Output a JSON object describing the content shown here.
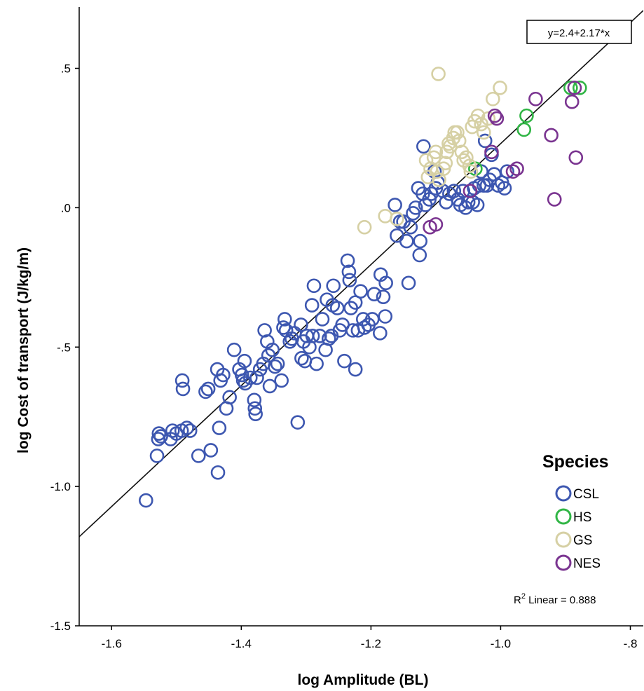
{
  "chart_data": {
    "type": "scatter",
    "xlabel": "log Amplitude (BL)",
    "ylabel": "log Cost of transport (J/kg/m)",
    "xlim": [
      -1.65,
      -0.78
    ],
    "ylim": [
      -1.5,
      0.72
    ],
    "x_ticks": [
      -1.6,
      -1.4,
      -1.2,
      -1.0,
      -0.8
    ],
    "x_tick_labels": [
      "-1.6",
      "-1.4",
      "-1.2",
      "-1.0",
      "-.8"
    ],
    "y_ticks": [
      -1.5,
      -1.0,
      -0.5,
      0.0,
      0.5
    ],
    "y_tick_labels": [
      "-1.5",
      "-1.0",
      "-.5",
      ".0",
      ".5"
    ],
    "grid": false,
    "legend": {
      "title": "Species",
      "placement": "bottom-right",
      "entries": [
        {
          "label": "CSL",
          "color": "#3d57b0"
        },
        {
          "label": "HS",
          "color": "#30b545"
        },
        {
          "label": "GS",
          "color": "#d6d0a4"
        },
        {
          "label": "NES",
          "color": "#7a3490"
        }
      ]
    },
    "fit_line": {
      "intercept": 2.4,
      "slope": 2.17,
      "label": "y=2.4+2.17*x"
    },
    "r2_label": {
      "prefix": "R",
      "sup": "2",
      "suffix": " Linear = 0.888"
    },
    "series": [
      {
        "name": "CSL",
        "color": "#3d57b0",
        "points": [
          [
            -1.547,
            -1.05
          ],
          [
            -1.53,
            -0.89
          ],
          [
            -1.528,
            -0.83
          ],
          [
            -1.527,
            -0.81
          ],
          [
            -1.524,
            -0.82
          ],
          [
            -1.509,
            -0.83
          ],
          [
            -1.506,
            -0.8
          ],
          [
            -1.5,
            -0.81
          ],
          [
            -1.492,
            -0.8
          ],
          [
            -1.491,
            -0.62
          ],
          [
            -1.49,
            -0.65
          ],
          [
            -1.484,
            -0.79
          ],
          [
            -1.479,
            -0.8
          ],
          [
            -1.466,
            -0.89
          ],
          [
            -1.455,
            -0.66
          ],
          [
            -1.451,
            -0.65
          ],
          [
            -1.447,
            -0.87
          ],
          [
            -1.437,
            -0.58
          ],
          [
            -1.436,
            -0.95
          ],
          [
            -1.434,
            -0.79
          ],
          [
            -1.432,
            -0.62
          ],
          [
            -1.428,
            -0.6
          ],
          [
            -1.423,
            -0.72
          ],
          [
            -1.418,
            -0.68
          ],
          [
            -1.411,
            -0.51
          ],
          [
            -1.403,
            -0.58
          ],
          [
            -1.399,
            -0.6
          ],
          [
            -1.397,
            -0.62
          ],
          [
            -1.395,
            -0.55
          ],
          [
            -1.394,
            -0.63
          ],
          [
            -1.386,
            -0.61
          ],
          [
            -1.38,
            -0.69
          ],
          [
            -1.379,
            -0.72
          ],
          [
            -1.378,
            -0.74
          ],
          [
            -1.376,
            -0.61
          ],
          [
            -1.371,
            -0.58
          ],
          [
            -1.366,
            -0.56
          ],
          [
            -1.364,
            -0.44
          ],
          [
            -1.36,
            -0.48
          ],
          [
            -1.358,
            -0.53
          ],
          [
            -1.356,
            -0.64
          ],
          [
            -1.352,
            -0.51
          ],
          [
            -1.348,
            -0.57
          ],
          [
            -1.344,
            -0.56
          ],
          [
            -1.338,
            -0.62
          ],
          [
            -1.335,
            -0.43
          ],
          [
            -1.333,
            -0.4
          ],
          [
            -1.331,
            -0.44
          ],
          [
            -1.325,
            -0.48
          ],
          [
            -1.322,
            -0.47
          ],
          [
            -1.318,
            -0.45
          ],
          [
            -1.313,
            -0.77
          ],
          [
            -1.308,
            -0.42
          ],
          [
            -1.307,
            -0.54
          ],
          [
            -1.304,
            -0.48
          ],
          [
            -1.302,
            -0.55
          ],
          [
            -1.299,
            -0.46
          ],
          [
            -1.295,
            -0.5
          ],
          [
            -1.291,
            -0.35
          ],
          [
            -1.29,
            -0.46
          ],
          [
            -1.288,
            -0.28
          ],
          [
            -1.284,
            -0.56
          ],
          [
            -1.279,
            -0.46
          ],
          [
            -1.275,
            -0.4
          ],
          [
            -1.27,
            -0.51
          ],
          [
            -1.268,
            -0.33
          ],
          [
            -1.265,
            -0.47
          ],
          [
            -1.261,
            -0.46
          ],
          [
            -1.259,
            -0.35
          ],
          [
            -1.258,
            -0.28
          ],
          [
            -1.252,
            -0.36
          ],
          [
            -1.248,
            -0.44
          ],
          [
            -1.244,
            -0.42
          ],
          [
            -1.241,
            -0.55
          ],
          [
            -1.236,
            -0.19
          ],
          [
            -1.234,
            -0.23
          ],
          [
            -1.233,
            -0.26
          ],
          [
            -1.231,
            -0.36
          ],
          [
            -1.228,
            -0.44
          ],
          [
            -1.224,
            -0.58
          ],
          [
            -1.224,
            -0.34
          ],
          [
            -1.22,
            -0.44
          ],
          [
            -1.216,
            -0.3
          ],
          [
            -1.212,
            -0.4
          ],
          [
            -1.21,
            -0.43
          ],
          [
            -1.204,
            -0.42
          ],
          [
            -1.198,
            -0.4
          ],
          [
            -1.195,
            -0.31
          ],
          [
            -1.186,
            -0.45
          ],
          [
            -1.185,
            -0.24
          ],
          [
            -1.181,
            -0.32
          ],
          [
            -1.178,
            -0.39
          ],
          [
            -1.177,
            -0.27
          ],
          [
            -1.163,
            0.01
          ],
          [
            -1.16,
            -0.1
          ],
          [
            -1.155,
            -0.05
          ],
          [
            -1.15,
            -0.05
          ],
          [
            -1.145,
            -0.12
          ],
          [
            -1.142,
            -0.27
          ],
          [
            -1.139,
            -0.07
          ],
          [
            -1.135,
            -0.02
          ],
          [
            -1.131,
            0.0
          ],
          [
            -1.127,
            0.07
          ],
          [
            -1.125,
            -0.17
          ],
          [
            -1.124,
            -0.12
          ],
          [
            -1.12,
            0.05
          ],
          [
            -1.119,
            0.22
          ],
          [
            -1.116,
            0.01
          ],
          [
            -1.11,
            0.03
          ],
          [
            -1.107,
            0.05
          ],
          [
            -1.102,
            0.13
          ],
          [
            -1.1,
            0.07
          ],
          [
            -1.097,
            0.09
          ],
          [
            -1.089,
            0.06
          ],
          [
            -1.084,
            0.02
          ],
          [
            -1.079,
            0.05
          ],
          [
            -1.072,
            0.06
          ],
          [
            -1.066,
            0.03
          ],
          [
            -1.062,
            0.01
          ],
          [
            -1.058,
            0.06
          ],
          [
            -1.054,
            0.0
          ],
          [
            -1.05,
            0.02
          ],
          [
            -1.043,
            0.02
          ],
          [
            -1.041,
            0.07
          ],
          [
            -1.036,
            0.01
          ],
          [
            -1.033,
            0.08
          ],
          [
            -1.03,
            0.13
          ],
          [
            -1.026,
            0.08
          ],
          [
            -1.024,
            0.24
          ],
          [
            -1.021,
            0.08
          ],
          [
            -1.017,
            0.1
          ],
          [
            -1.014,
            0.19
          ],
          [
            -1.01,
            0.12
          ],
          [
            -1.004,
            0.08
          ],
          [
            -0.998,
            0.09
          ],
          [
            -0.994,
            0.07
          ],
          [
            -0.99,
            0.13
          ]
        ]
      },
      {
        "name": "HS",
        "color": "#30b545",
        "points": [
          [
            -1.039,
            0.14
          ],
          [
            -0.964,
            0.28
          ],
          [
            -0.96,
            0.33
          ],
          [
            -0.892,
            0.43
          ],
          [
            -0.878,
            0.43
          ]
        ]
      },
      {
        "name": "GS",
        "color": "#d6d0a4",
        "points": [
          [
            -1.21,
            -0.07
          ],
          [
            -1.178,
            -0.03
          ],
          [
            -1.16,
            -0.04
          ],
          [
            -1.115,
            0.17
          ],
          [
            -1.112,
            0.11
          ],
          [
            -1.108,
            0.14
          ],
          [
            -1.103,
            0.18
          ],
          [
            -1.1,
            0.2
          ],
          [
            -1.098,
            0.13
          ],
          [
            -1.095,
            0.1
          ],
          [
            -1.088,
            0.14
          ],
          [
            -1.085,
            0.16
          ],
          [
            -1.083,
            0.2
          ],
          [
            -1.08,
            0.23
          ],
          [
            -1.078,
            0.22
          ],
          [
            -1.073,
            0.25
          ],
          [
            -1.071,
            0.27
          ],
          [
            -1.067,
            0.27
          ],
          [
            -1.064,
            0.24
          ],
          [
            -1.06,
            0.2
          ],
          [
            -1.057,
            0.17
          ],
          [
            -1.053,
            0.18
          ],
          [
            -1.048,
            0.15
          ],
          [
            -1.044,
            0.29
          ],
          [
            -1.04,
            0.31
          ],
          [
            -1.035,
            0.33
          ],
          [
            -1.03,
            0.3
          ],
          [
            -1.026,
            0.27
          ],
          [
            -1.019,
            0.32
          ],
          [
            -1.012,
            0.39
          ],
          [
            -1.001,
            0.43
          ],
          [
            -1.046,
            0.13
          ],
          [
            -1.096,
            0.48
          ]
        ]
      },
      {
        "name": "NES",
        "color": "#7a3490",
        "points": [
          [
            -1.109,
            -0.07
          ],
          [
            -1.1,
            -0.06
          ],
          [
            -1.047,
            0.06
          ],
          [
            -1.014,
            0.2
          ],
          [
            -1.009,
            0.33
          ],
          [
            -1.006,
            0.32
          ],
          [
            -0.981,
            0.13
          ],
          [
            -0.975,
            0.14
          ],
          [
            -0.946,
            0.39
          ],
          [
            -0.922,
            0.26
          ],
          [
            -0.917,
            0.03
          ],
          [
            -0.89,
            0.38
          ],
          [
            -0.884,
            0.18
          ],
          [
            -0.886,
            0.43
          ]
        ]
      }
    ]
  }
}
